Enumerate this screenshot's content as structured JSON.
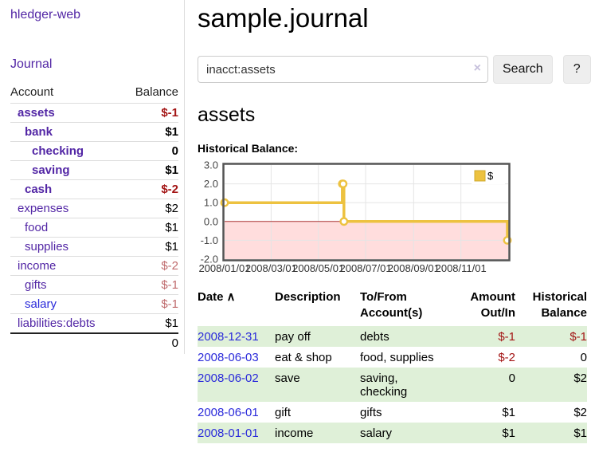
{
  "colors": {
    "link_purple": "#5226a5",
    "link_blue": "#2a2ada",
    "negative_strong": "#a31414",
    "negative_soft": "#bf6a6c",
    "row_stripe_green": "#dff0d8",
    "chart_line_gold": "#edc240",
    "chart_negative_bg": "#ffdddd",
    "chart_zero_line": "#aa3333"
  },
  "sidebar": {
    "app_title": "hledger-web",
    "journal_label": "Journal",
    "table": {
      "account_header": "Account",
      "balance_header": "Balance",
      "accounts": [
        {
          "label": "assets",
          "balance": "$-1",
          "depth": 1,
          "bold": true,
          "neg": "strong"
        },
        {
          "label": "bank",
          "balance": "$1",
          "depth": 2,
          "bold": true,
          "neg": "none"
        },
        {
          "label": "checking",
          "balance": "0",
          "depth": 3,
          "bold": true,
          "neg": "none"
        },
        {
          "label": "saving",
          "balance": "$1",
          "depth": 3,
          "bold": true,
          "neg": "none"
        },
        {
          "label": "cash",
          "balance": "$-2",
          "depth": 2,
          "bold": true,
          "neg": "strong"
        },
        {
          "label": "expenses",
          "balance": "$2",
          "depth": 1,
          "bold": false,
          "neg": "none"
        },
        {
          "label": "food",
          "balance": "$1",
          "depth": 2,
          "bold": false,
          "neg": "none"
        },
        {
          "label": "supplies",
          "balance": "$1",
          "depth": 2,
          "bold": false,
          "neg": "none"
        },
        {
          "label": "income",
          "balance": "$-2",
          "depth": 1,
          "bold": false,
          "neg": "soft"
        },
        {
          "label": "gifts",
          "balance": "$-1",
          "depth": 2,
          "bold": false,
          "neg": "soft"
        },
        {
          "label": "salary",
          "balance": "$-1",
          "depth": 2,
          "bold": false,
          "neg": "soft",
          "link": "unvisited"
        },
        {
          "label": "liabilities:debts",
          "balance": "$1",
          "depth": 1,
          "bold": false,
          "neg": "none"
        }
      ],
      "total": "0"
    }
  },
  "main": {
    "title": "sample.journal",
    "search": {
      "value": "inacct:assets",
      "clear_icon": "×",
      "button_label": "Search",
      "help_label": "?"
    },
    "account_heading": "assets",
    "chart_label": "Historical Balance:"
  },
  "register": {
    "headers": {
      "date": "Date",
      "sort_icon": "∧",
      "description": "Description",
      "accounts": "To/From Account(s)",
      "amount": "Amount Out/In",
      "balance": "Historical Balance"
    },
    "rows": [
      {
        "date": "2008-12-31",
        "description": "pay off",
        "accounts": "debts",
        "amount": "$-1",
        "balance": "$-1",
        "amount_neg": true,
        "balance_neg": true
      },
      {
        "date": "2008-06-03",
        "description": "eat & shop",
        "accounts": "food, supplies",
        "amount": "$-2",
        "balance": "0",
        "amount_neg": true,
        "balance_neg": false
      },
      {
        "date": "2008-06-02",
        "description": "save",
        "accounts": "saving,\nchecking",
        "amount": "0",
        "balance": "$2",
        "amount_neg": false,
        "balance_neg": false
      },
      {
        "date": "2008-06-01",
        "description": "gift",
        "accounts": "gifts",
        "amount": "$1",
        "balance": "$2",
        "amount_neg": false,
        "balance_neg": false
      },
      {
        "date": "2008-01-01",
        "description": "income",
        "accounts": "salary",
        "amount": "$1",
        "balance": "$1",
        "amount_neg": false,
        "balance_neg": false
      }
    ]
  },
  "chart_data": {
    "type": "line",
    "title": "Historical Balance",
    "steps": true,
    "series": [
      {
        "name": "$",
        "color": "#edc240",
        "points": [
          [
            "2008-01-01",
            1
          ],
          [
            "2008-06-01",
            2
          ],
          [
            "2008-06-02",
            2
          ],
          [
            "2008-06-03",
            0
          ],
          [
            "2008-12-31",
            -1
          ]
        ]
      }
    ],
    "x_range": [
      "2008-01-01",
      "2009-01-01"
    ],
    "x_ticks": [
      "2008/01/01",
      "2008/03/01",
      "2008/05/01",
      "2008/07/01",
      "2008/09/01",
      "2008/11/01"
    ],
    "y_ticks": [
      3.0,
      2.0,
      1.0,
      0.0,
      -1.0,
      -2.0
    ],
    "ylim": [
      -2,
      3
    ],
    "grid": true,
    "legend": {
      "label": "$",
      "position": "top-right"
    },
    "negative_region_color": "#ffdddd",
    "zero_line_color": "#aa3333"
  }
}
